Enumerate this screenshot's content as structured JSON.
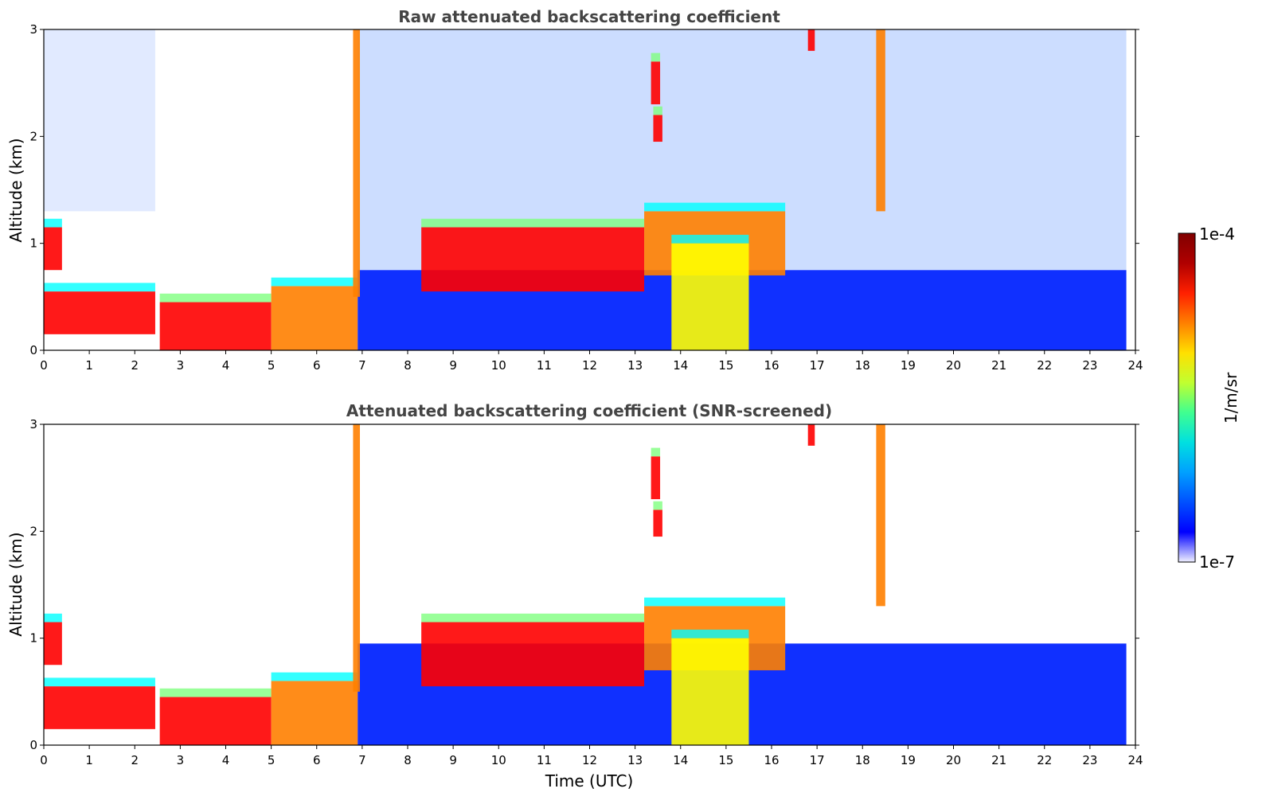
{
  "chart_data": [
    {
      "type": "heatmap",
      "title": "Raw attenuated backscattering coefficient",
      "xlabel": "",
      "ylabel": "Altitude (km)",
      "xlim": [
        0,
        24
      ],
      "ylim": [
        0,
        3
      ],
      "xticks": [
        "0",
        "1",
        "2",
        "3",
        "4",
        "5",
        "6",
        "7",
        "8",
        "9",
        "10",
        "11",
        "12",
        "13",
        "14",
        "15",
        "16",
        "17",
        "18",
        "19",
        "20",
        "21",
        "22",
        "23",
        "24"
      ],
      "yticks": [
        "0",
        "1",
        "2",
        "3"
      ],
      "screened": false,
      "layers": [
        {
          "t0": 0.0,
          "t1": 2.45,
          "h0": 0.15,
          "h1": 0.55,
          "level": 0.9
        },
        {
          "t0": 0.0,
          "t1": 0.4,
          "h0": 0.75,
          "h1": 1.15,
          "level": 0.9
        },
        {
          "t0": 2.55,
          "t1": 5.0,
          "h0": 0.0,
          "h1": 0.45,
          "level": 0.95
        },
        {
          "t0": 5.0,
          "t1": 6.9,
          "h0": 0.0,
          "h1": 0.6,
          "level": 0.85
        },
        {
          "t0": 6.8,
          "t1": 6.95,
          "h0": 0.5,
          "h1": 3.0,
          "level": 0.8
        },
        {
          "t0": 8.3,
          "t1": 13.2,
          "h0": 0.55,
          "h1": 1.15,
          "level": 0.95
        },
        {
          "t0": 13.2,
          "t1": 16.3,
          "h0": 0.7,
          "h1": 1.3,
          "level": 0.85
        },
        {
          "t0": 13.8,
          "t1": 15.5,
          "h0": 0.0,
          "h1": 1.0,
          "level": 0.7
        },
        {
          "t0": 13.35,
          "t1": 13.55,
          "h0": 2.3,
          "h1": 2.7,
          "level": 0.95
        },
        {
          "t0": 13.4,
          "t1": 13.6,
          "h0": 1.95,
          "h1": 2.2,
          "level": 0.95
        },
        {
          "t0": 16.8,
          "t1": 16.95,
          "h0": 2.8,
          "h1": 3.0,
          "level": 0.95
        },
        {
          "t0": 18.3,
          "t1": 18.5,
          "h0": 1.3,
          "h1": 3.0,
          "level": 0.75
        }
      ]
    },
    {
      "type": "heatmap",
      "title": "Attenuated backscattering coefficient (SNR-screened)",
      "xlabel": "Time (UTC)",
      "ylabel": "Altitude (km)",
      "xlim": [
        0,
        24
      ],
      "ylim": [
        0,
        3
      ],
      "xticks": [
        "0",
        "1",
        "2",
        "3",
        "4",
        "5",
        "6",
        "7",
        "8",
        "9",
        "10",
        "11",
        "12",
        "13",
        "14",
        "15",
        "16",
        "17",
        "18",
        "19",
        "20",
        "21",
        "22",
        "23",
        "24"
      ],
      "yticks": [
        "0",
        "1",
        "2",
        "3"
      ],
      "screened": true,
      "layers": [
        {
          "t0": 0.0,
          "t1": 2.45,
          "h0": 0.15,
          "h1": 0.55,
          "level": 0.9
        },
        {
          "t0": 0.0,
          "t1": 0.4,
          "h0": 0.75,
          "h1": 1.15,
          "level": 0.9
        },
        {
          "t0": 2.55,
          "t1": 5.0,
          "h0": 0.0,
          "h1": 0.45,
          "level": 0.95
        },
        {
          "t0": 5.0,
          "t1": 6.9,
          "h0": 0.0,
          "h1": 0.6,
          "level": 0.85
        },
        {
          "t0": 6.8,
          "t1": 6.95,
          "h0": 0.5,
          "h1": 3.0,
          "level": 0.8
        },
        {
          "t0": 8.3,
          "t1": 13.2,
          "h0": 0.55,
          "h1": 1.15,
          "level": 0.95
        },
        {
          "t0": 13.2,
          "t1": 16.3,
          "h0": 0.7,
          "h1": 1.3,
          "level": 0.85
        },
        {
          "t0": 13.8,
          "t1": 15.5,
          "h0": 0.0,
          "h1": 1.0,
          "level": 0.7
        },
        {
          "t0": 13.35,
          "t1": 13.55,
          "h0": 2.3,
          "h1": 2.7,
          "level": 0.95
        },
        {
          "t0": 13.4,
          "t1": 13.6,
          "h0": 1.95,
          "h1": 2.2,
          "level": 0.95
        },
        {
          "t0": 16.8,
          "t1": 16.95,
          "h0": 2.8,
          "h1": 3.0,
          "level": 0.95
        },
        {
          "t0": 18.3,
          "t1": 18.5,
          "h0": 1.3,
          "h1": 3.0,
          "level": 0.75
        }
      ]
    }
  ],
  "colorbar": {
    "label": "1/m/sr",
    "max_label": "1e-4",
    "min_label": "1e-7",
    "colormap": [
      "#00007f",
      "#0000ff",
      "#007fff",
      "#00ffff",
      "#7fff7f",
      "#ffff00",
      "#ff7f00",
      "#ff0000",
      "#7f0000"
    ]
  }
}
